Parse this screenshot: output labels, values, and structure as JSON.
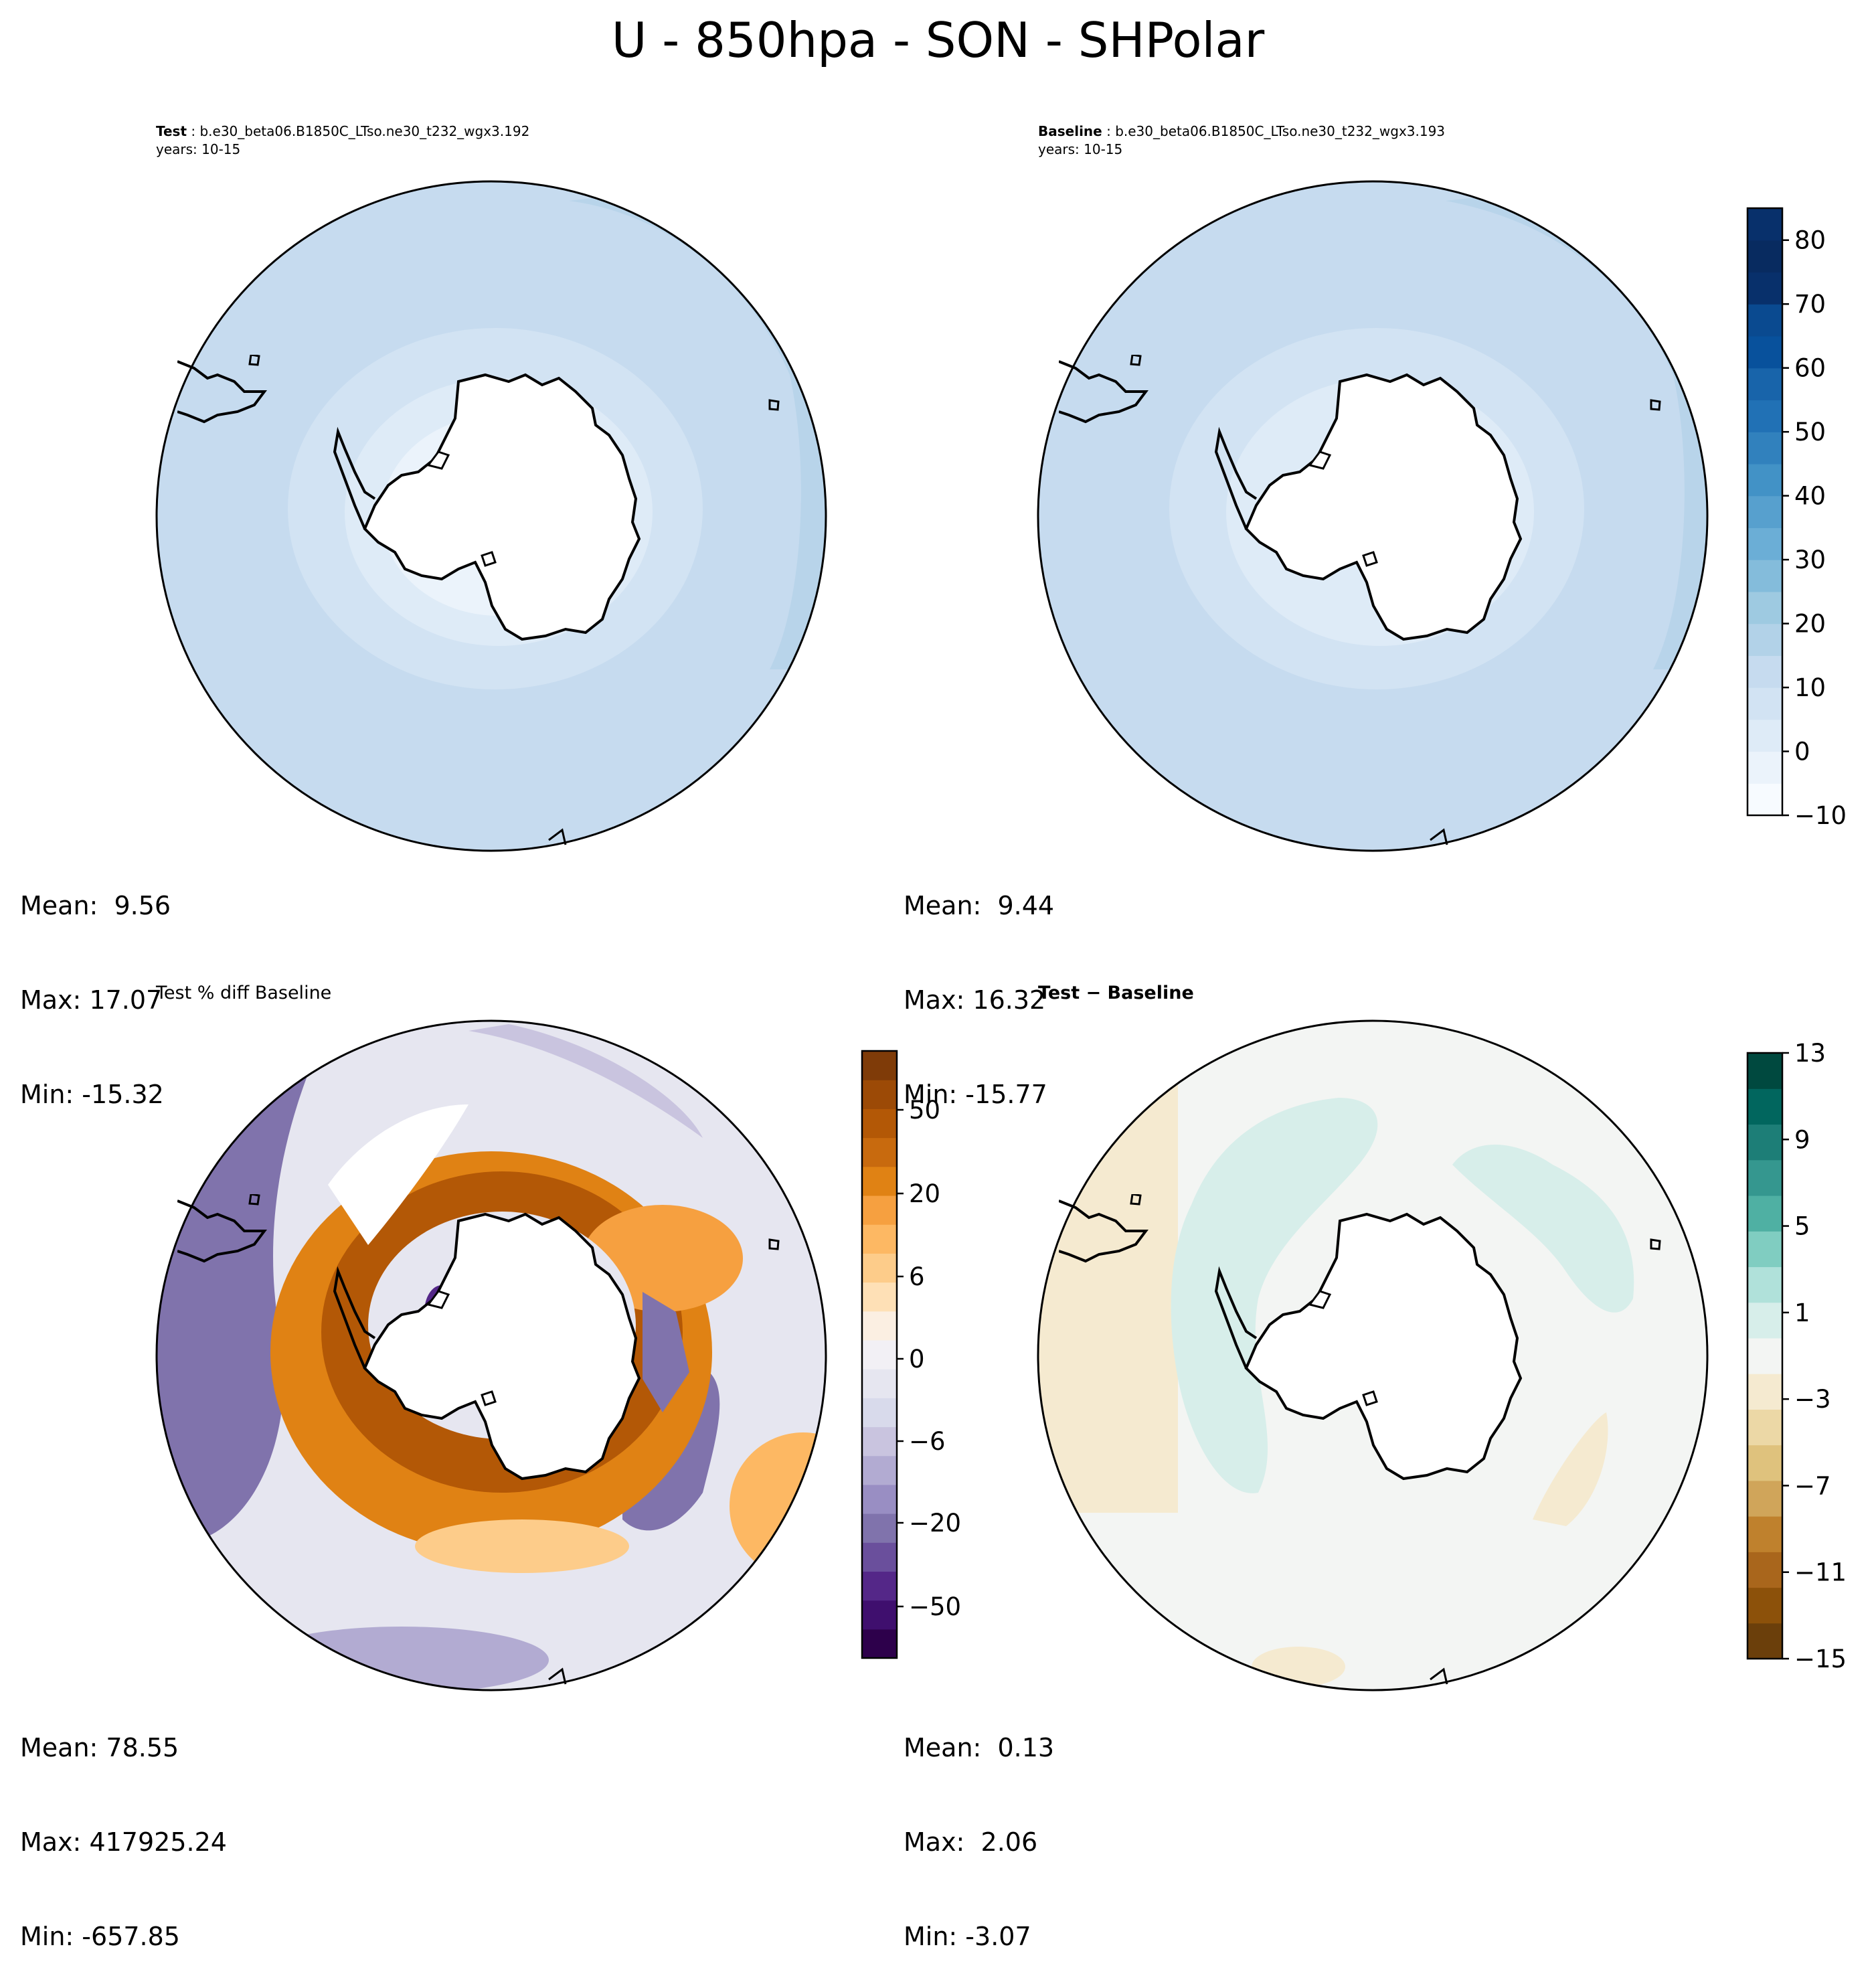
{
  "figure_title": "U - 850hpa - SON - SHPolar",
  "panels": {
    "test": {
      "label": "Test",
      "case": " : b.e30_beta06.B1850C_LTso.ne30_t232_wgx3.192",
      "years": "years: 10-15",
      "mean": "Mean:  9.56",
      "max": "Max: 17.07",
      "min": "Min: -15.32"
    },
    "baseline": {
      "label": "Baseline",
      "case": " : b.e30_beta06.B1850C_LTso.ne30_t232_wgx3.193",
      "years": "years: 10-15",
      "mean": "Mean:  9.44",
      "max": "Max: 16.32",
      "min": "Min: -15.77"
    },
    "pct_diff": {
      "title": "Test % diff Baseline",
      "mean": "Mean: 78.55",
      "max": "Max: 417925.24",
      "min": "Min: -657.85"
    },
    "diff": {
      "title": "Test − Baseline",
      "mean": "Mean:  0.13",
      "max": "Max:  2.06",
      "min": "Min: -3.07"
    }
  },
  "colorbars": {
    "field": {
      "colormap": "Blues",
      "ticks": [
        "−10",
        "0",
        "10",
        "20",
        "30",
        "40",
        "50",
        "60",
        "70",
        "80"
      ],
      "tick_values": [
        -10,
        0,
        10,
        20,
        30,
        40,
        50,
        60,
        70,
        80
      ],
      "range": [
        -10,
        85
      ],
      "levels": 19,
      "colors": [
        "#f7fbff",
        "#ebf3fb",
        "#deebf7",
        "#d2e3f3",
        "#c6dbef",
        "#b2d2e8",
        "#9ecae1",
        "#84bcdb",
        "#6baed6",
        "#57a0ce",
        "#4292c6",
        "#3181bd",
        "#2171b5",
        "#1864aa",
        "#08519c",
        "#0a4a90",
        "#08306b",
        "#082b60",
        "#08306b"
      ]
    },
    "pct": {
      "colormap": "PuOr_r",
      "ticks": [
        "−50",
        "−20",
        "−6",
        "0",
        "6",
        "20",
        "50"
      ],
      "colors": [
        "#2d004b",
        "#3f0f6e",
        "#542788",
        "#6a4f9c",
        "#8073ac",
        "#998ec3",
        "#b2abd2",
        "#c9c4df",
        "#d8daeb",
        "#e6e6f0",
        "#f2f0f5",
        "#fbefe2",
        "#fee0b6",
        "#fdcc8a",
        "#fdb863",
        "#f6a040",
        "#e08214",
        "#c86a0e",
        "#b35806",
        "#9c4a06",
        "#7f3b08"
      ]
    },
    "diff": {
      "colormap": "BrBG",
      "ticks": [
        "−15",
        "−11",
        "−7",
        "−3",
        "1",
        "5",
        "9",
        "13"
      ],
      "colors": [
        "#6b3f0b",
        "#8c510a",
        "#a9661c",
        "#bf812d",
        "#d0a55a",
        "#dfc27d",
        "#ecd8a6",
        "#f5ead0",
        "#f3f5f3",
        "#d7eeea",
        "#b0e1da",
        "#80cdc1",
        "#4fb0a3",
        "#35978f",
        "#1d7e77",
        "#01665e",
        "#00493f"
      ]
    }
  }
}
